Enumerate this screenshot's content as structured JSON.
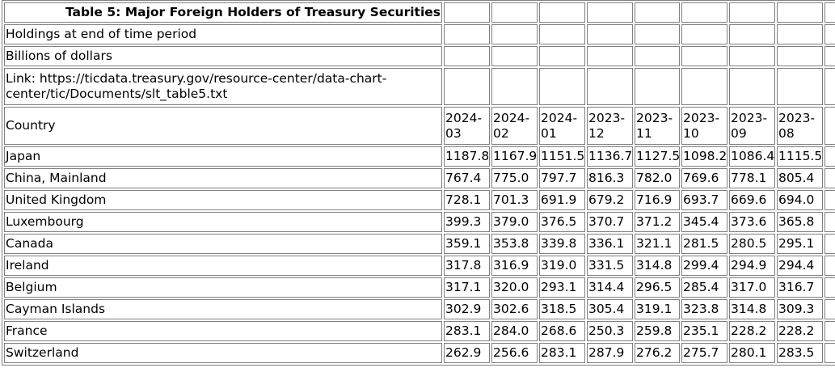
{
  "title": "Table 5: Major Foreign Holders of Treasury Securities",
  "subtitle1": "Holdings at end of time period",
  "subtitle2": "Billions of dollars",
  "link": "Link: https://ticdata.treasury.gov/resource-center/data-chart-center/tic/Documents/slt_table5.txt",
  "column_header": "Country",
  "periods": [
    "2024-03",
    "2024-02",
    "2024-01",
    "2023-12",
    "2023-11",
    "2023-10",
    "2023-09",
    "2023-08"
  ],
  "rows": [
    {
      "country": "Japan",
      "values": [
        "1187.8",
        "1167.9",
        "1151.5",
        "1136.7",
        "1127.5",
        "1098.2",
        "1086.4",
        "1115.5"
      ]
    },
    {
      "country": "China, Mainland",
      "values": [
        "767.4",
        "775.0",
        "797.7",
        "816.3",
        "782.0",
        "769.6",
        "778.1",
        "805.4"
      ]
    },
    {
      "country": "United Kingdom",
      "values": [
        "728.1",
        "701.3",
        "691.9",
        "679.2",
        "716.9",
        "693.7",
        "669.6",
        "694.0"
      ]
    },
    {
      "country": "Luxembourg",
      "values": [
        "399.3",
        "379.0",
        "376.5",
        "370.7",
        "371.2",
        "345.4",
        "373.6",
        "365.8"
      ]
    },
    {
      "country": "Canada",
      "values": [
        "359.1",
        "353.8",
        "339.8",
        "336.1",
        "321.1",
        "281.5",
        "280.5",
        "295.1"
      ]
    },
    {
      "country": "Ireland",
      "values": [
        "317.8",
        "316.9",
        "319.0",
        "331.5",
        "314.8",
        "299.4",
        "294.9",
        "294.4"
      ]
    },
    {
      "country": "Belgium",
      "values": [
        "317.1",
        "320.0",
        "293.1",
        "314.4",
        "296.5",
        "285.4",
        "317.0",
        "316.7"
      ]
    },
    {
      "country": "Cayman Islands",
      "values": [
        "302.9",
        "302.6",
        "318.5",
        "305.4",
        "319.1",
        "323.8",
        "314.8",
        "309.3"
      ]
    },
    {
      "country": "France",
      "values": [
        "283.1",
        "284.0",
        "268.6",
        "250.3",
        "259.8",
        "235.1",
        "228.2",
        "228.2"
      ]
    },
    {
      "country": "Switzerland",
      "values": [
        "262.9",
        "256.6",
        "283.1",
        "287.9",
        "276.2",
        "275.7",
        "280.1",
        "283.5"
      ]
    }
  ]
}
